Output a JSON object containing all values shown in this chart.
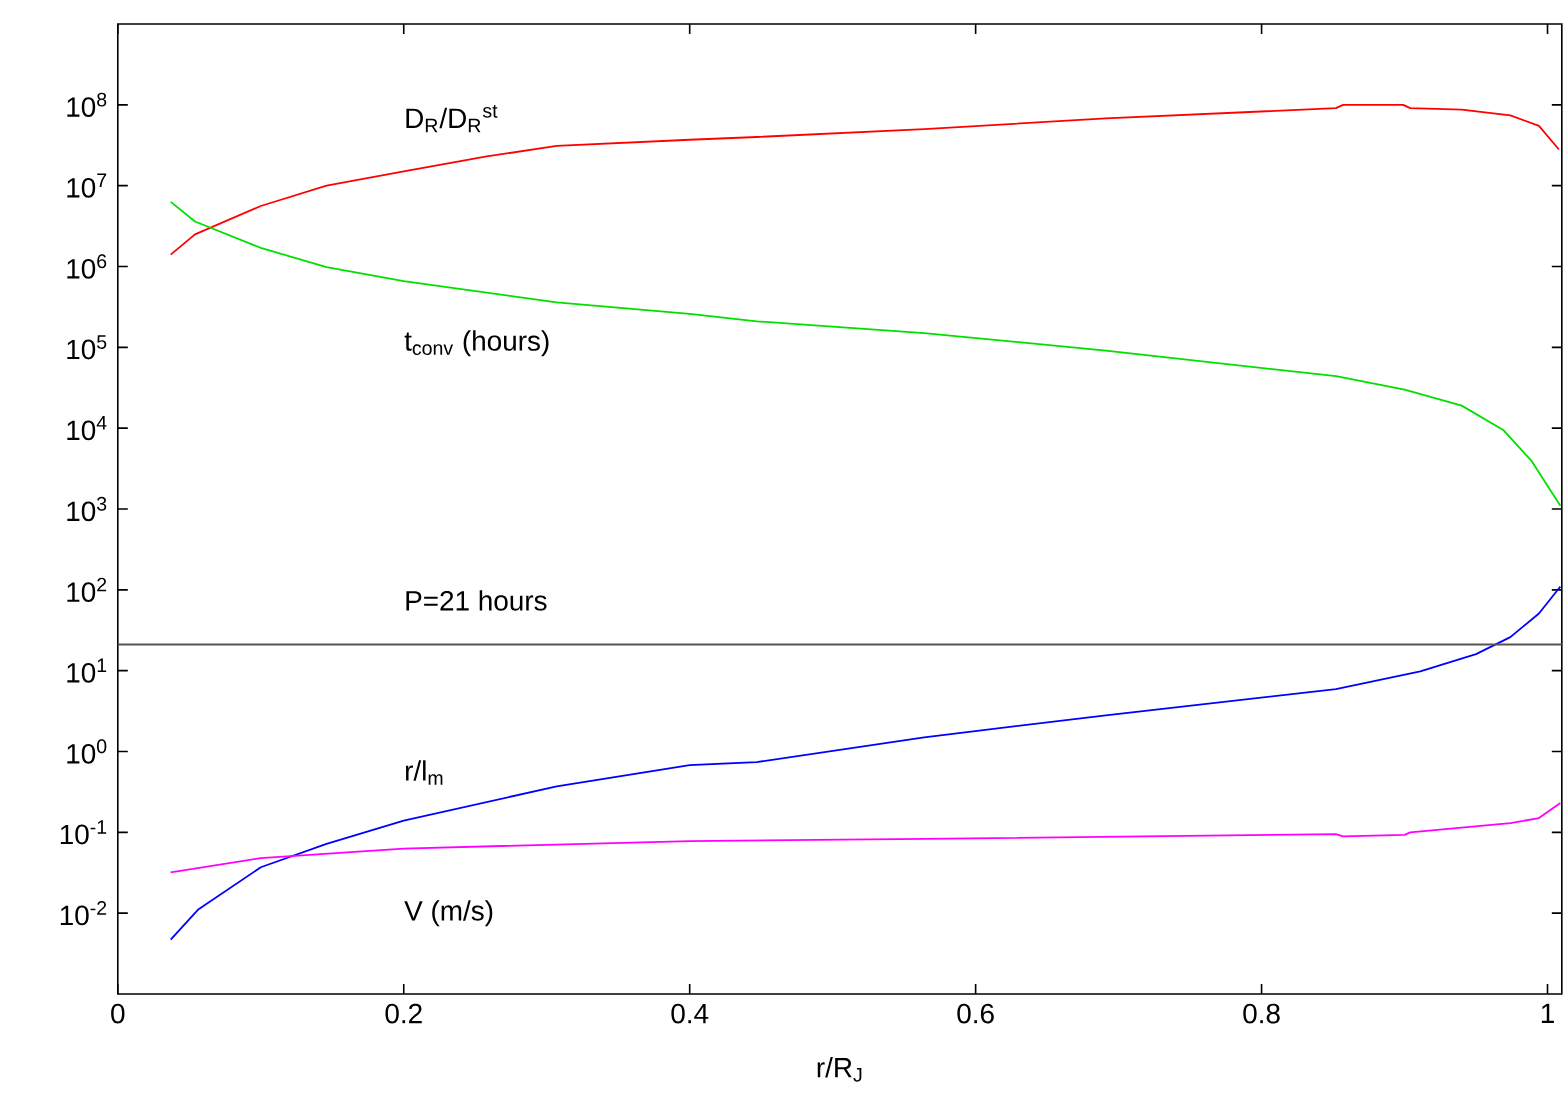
{
  "chart_data": {
    "type": "line",
    "xlabel": "r/R$_{J}$",
    "log": true,
    "xlim": [
      0,
      1.01
    ],
    "ylim": [
      0.001,
      1000000000.0
    ],
    "xticks": [
      0,
      0.2,
      0.4,
      0.6,
      0.8,
      1
    ],
    "yticks": [
      {
        "value": 0.01,
        "label": "10$^{-2}$"
      },
      {
        "value": 0.1,
        "label": "10$^{-1}$"
      },
      {
        "value": 1,
        "label": "10$^{0}$"
      },
      {
        "value": 10,
        "label": "10$^{1}$"
      },
      {
        "value": 100,
        "label": "10$^{2}$"
      },
      {
        "value": 1000,
        "label": "10$^{3}$"
      },
      {
        "value": 10000.0,
        "label": "10$^{4}$"
      },
      {
        "value": 100000.0,
        "label": "10$^{5}$"
      },
      {
        "value": 1000000.0,
        "label": "10$^{6}$"
      },
      {
        "value": 10000000.0,
        "label": "10$^{7}$"
      },
      {
        "value": 100000000.0,
        "label": "10$^{8}$"
      }
    ],
    "ref_lines": [
      {
        "axis": "y",
        "value": 21,
        "label": "P=21 hours",
        "color": "#555555"
      }
    ],
    "series": [
      {
        "name": "D$_{R}$/D$_{R}$$^{st}$",
        "color": "#ff0000",
        "x": [
          0.037,
          0.054,
          0.1,
          0.146,
          0.2,
          0.258,
          0.307,
          0.4,
          0.447,
          0.564,
          0.691,
          0.852,
          0.857,
          0.899,
          0.904,
          0.94,
          0.974,
          0.994,
          1.008
        ],
        "values": [
          1400000.0,
          2500000.0,
          5600000.0,
          10000000.0,
          15000000.0,
          23000000.0,
          31000000.0,
          37000000.0,
          40000000.0,
          50000000.0,
          68000000.0,
          91000000.0,
          100000000.0,
          100000000.0,
          91000000.0,
          87000000.0,
          74000000.0,
          55000000.0,
          28000000.0
        ]
      },
      {
        "name": "t$_{conv}$ (hours)",
        "color": "#00e000",
        "x": [
          0.037,
          0.054,
          0.1,
          0.146,
          0.2,
          0.307,
          0.4,
          0.447,
          0.564,
          0.691,
          0.852,
          0.9,
          0.94,
          0.969,
          0.989,
          1.003,
          1.009
        ],
        "values": [
          6300000.0,
          3600000.0,
          1700000.0,
          980000.0,
          660000.0,
          360000.0,
          260000.0,
          210000.0,
          150000.0,
          91000.0,
          44000.0,
          30000.0,
          19000.0,
          9500.0,
          3900.0,
          1600.0,
          1100.0
        ]
      },
      {
        "name": "r/l$_{m}$",
        "color": "#0000ff",
        "x": [
          0.037,
          0.056,
          0.1,
          0.146,
          0.2,
          0.307,
          0.4,
          0.447,
          0.564,
          0.691,
          0.852,
          0.911,
          0.95,
          0.974,
          0.994,
          1.009
        ],
        "values": [
          0.0047,
          0.011,
          0.037,
          0.072,
          0.14,
          0.37,
          0.68,
          0.74,
          1.5,
          2.8,
          5.9,
          9.8,
          16,
          26,
          51,
          110
        ]
      },
      {
        "name": "V (m/s)",
        "color": "#ff00ff",
        "x": [
          0.037,
          0.1,
          0.2,
          0.4,
          0.564,
          0.852,
          0.857,
          0.9,
          0.904,
          0.974,
          0.994,
          1.009
        ],
        "values": [
          0.032,
          0.048,
          0.063,
          0.078,
          0.083,
          0.095,
          0.089,
          0.093,
          0.1,
          0.13,
          0.15,
          0.23
        ]
      }
    ]
  }
}
